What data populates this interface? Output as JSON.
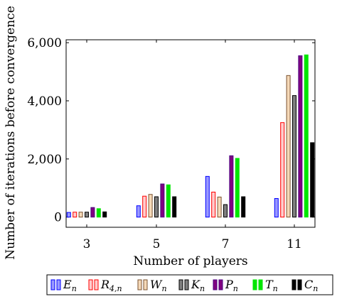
{
  "chart_data": {
    "type": "bar",
    "xlabel": "Number of players",
    "ylabel": "Number of iterations before convergence",
    "categories": [
      "3",
      "5",
      "7",
      "11"
    ],
    "ylim": [
      -350,
      6100
    ],
    "yticks": [
      0,
      2000,
      4000,
      6000
    ],
    "ytick_labels": [
      "0",
      "2,000",
      "4,000",
      "6,000"
    ],
    "grid": false,
    "legend_position": "bottom",
    "series": [
      {
        "name": "E_n",
        "label_main": "E",
        "label_sub": "n",
        "fill": "#9999ff",
        "stroke": "#0000ff",
        "values": [
          160,
          390,
          1400,
          640
        ]
      },
      {
        "name": "R_4,n",
        "label_main": "R",
        "label_sub": "4,n",
        "fill": "#ffcccc",
        "stroke": "#ff0000",
        "values": [
          170,
          720,
          860,
          3250
        ]
      },
      {
        "name": "W_n",
        "label_main": "W",
        "label_sub": "n",
        "fill": "#f5d9b8",
        "stroke": "#7a5230",
        "values": [
          170,
          780,
          690,
          4870
        ]
      },
      {
        "name": "K_n",
        "label_main": "K",
        "label_sub": "n",
        "fill": "#808080",
        "stroke": "#000000",
        "values": [
          170,
          700,
          430,
          4180
        ]
      },
      {
        "name": "P_n",
        "label_main": "P",
        "label_sub": "n",
        "fill": "#800080",
        "stroke": "#4b0082",
        "values": [
          330,
          1140,
          2110,
          5550
        ]
      },
      {
        "name": "T_n",
        "label_main": "T",
        "label_sub": "n",
        "fill": "#00e600",
        "stroke": "#00e600",
        "values": [
          290,
          1110,
          2020,
          5580
        ]
      },
      {
        "name": "C_n",
        "label_main": "C",
        "label_sub": "n",
        "fill": "#000000",
        "stroke": "#000000",
        "values": [
          180,
          700,
          700,
          2560
        ]
      }
    ]
  }
}
